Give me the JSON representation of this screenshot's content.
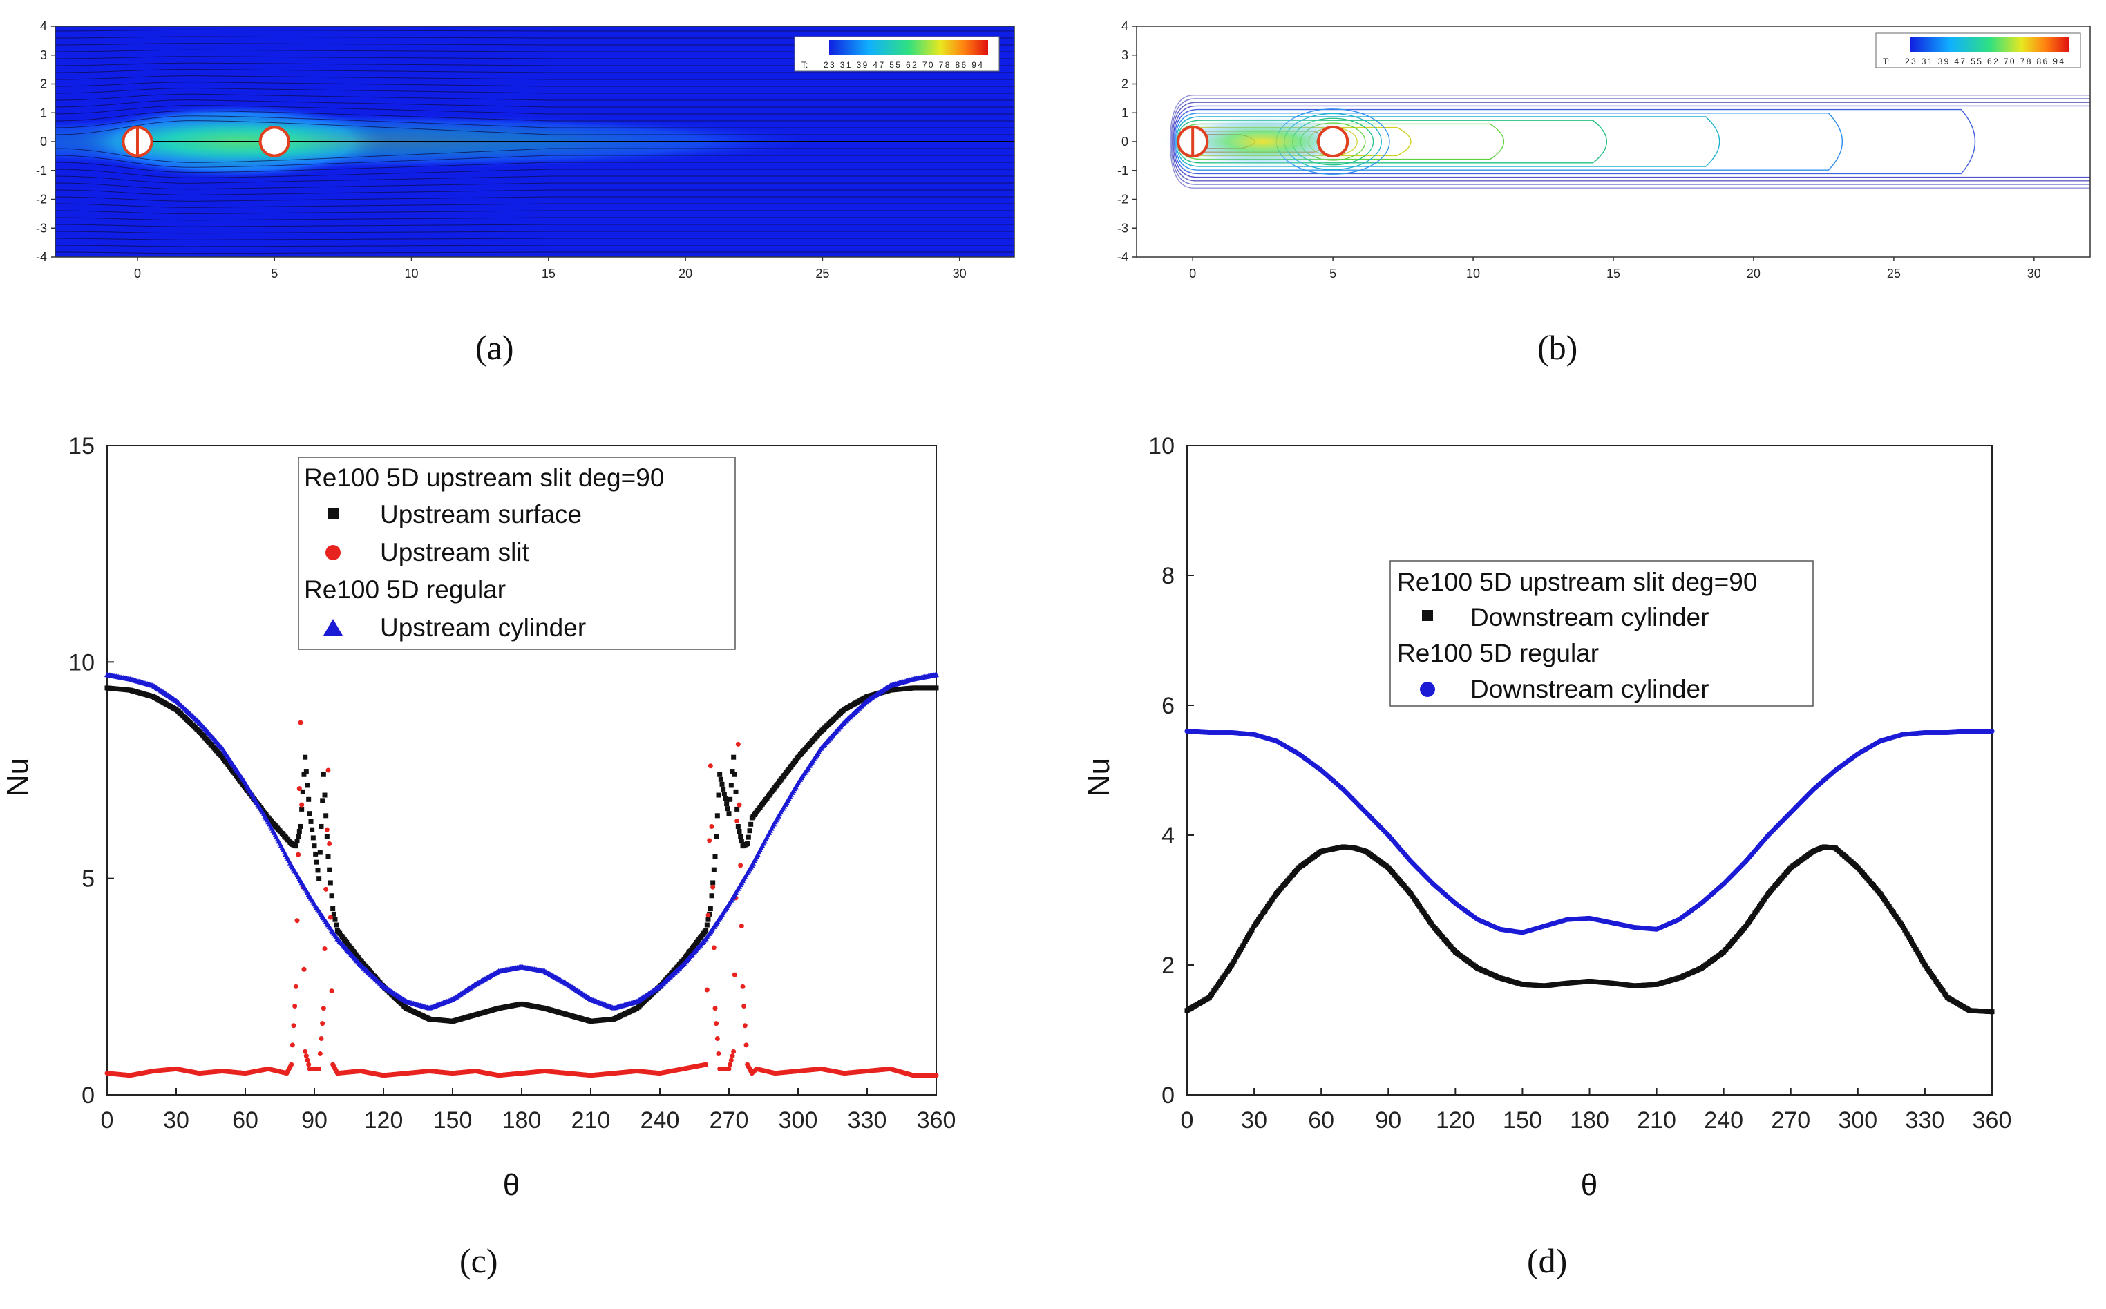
{
  "panel_labels": [
    "(a)",
    "(b)",
    "(c)",
    "(d)"
  ],
  "colors": {
    "field_blue": "#0f1ee6",
    "black_series": "#111111",
    "red_series": "#e8231f",
    "blue_series": "#1b1bd6"
  },
  "chart_data": [
    {
      "type": "heatmap",
      "title": "",
      "label": "(a)",
      "x_ticks": [
        "0",
        "5",
        "10",
        "15",
        "20",
        "25",
        "30"
      ],
      "y_ticks": [
        "4",
        "3",
        "2",
        "1",
        "0",
        "-1",
        "-2",
        "-3",
        "-4"
      ],
      "xlim": [
        -3,
        32
      ],
      "ylim": [
        -4,
        4
      ],
      "colorbar_prefix": "T:",
      "colorbar_labels": "23 31 39 47 55 62 70 78 86 94",
      "cylinders_x": [
        0,
        5
      ]
    },
    {
      "type": "heatmap",
      "title": "",
      "label": "(b)",
      "x_ticks": [
        "0",
        "5",
        "10",
        "15",
        "20",
        "25",
        "30"
      ],
      "y_ticks": [
        "4",
        "3",
        "2",
        "1",
        "0",
        "-1",
        "-2",
        "-3",
        "-4"
      ],
      "xlim": [
        -2,
        32
      ],
      "ylim": [
        -4,
        4
      ],
      "colorbar_prefix": "T:",
      "colorbar_labels": "23 31 39 47 55 62 70 78 86 94",
      "cylinders_x": [
        0,
        5
      ]
    },
    {
      "type": "scatter",
      "label": "(c)",
      "xlabel": "θ",
      "ylabel": "Nu",
      "xlim": [
        0,
        360
      ],
      "ylim": [
        0,
        15
      ],
      "x_ticks": [
        "0",
        "30",
        "60",
        "90",
        "120",
        "150",
        "180",
        "210",
        "240",
        "270",
        "300",
        "330",
        "360"
      ],
      "y_ticks": [
        "0",
        "5",
        "10",
        "15"
      ],
      "legend": {
        "group1_title": "Re100 5D upstream slit deg=90",
        "entries1": [
          "Upstream surface",
          "Upstream slit"
        ],
        "group2_title": "Re100 5D regular",
        "entries2": [
          "Upstream cylinder"
        ]
      },
      "series": [
        {
          "name": "Upstream surface",
          "marker": "square",
          "color": "#111111",
          "x": [
            0,
            10,
            20,
            30,
            40,
            50,
            60,
            70,
            80,
            82,
            84,
            86,
            88,
            92,
            94,
            96,
            98,
            100,
            110,
            120,
            130,
            140,
            150,
            160,
            170,
            180,
            190,
            200,
            210,
            220,
            230,
            240,
            250,
            260,
            262,
            264,
            266,
            270,
            272,
            274,
            276,
            278,
            280,
            290,
            300,
            310,
            320,
            330,
            340,
            350,
            360
          ],
          "y": [
            9.4,
            9.35,
            9.2,
            8.9,
            8.4,
            7.8,
            7.1,
            6.4,
            5.8,
            5.75,
            6.2,
            7.8,
            6.5,
            5.0,
            7.4,
            5.5,
            4.3,
            3.8,
            3.1,
            2.5,
            2.0,
            1.75,
            1.7,
            1.85,
            2.0,
            2.1,
            2.0,
            1.85,
            1.7,
            1.75,
            2.0,
            2.5,
            3.1,
            3.8,
            4.3,
            5.5,
            7.4,
            6.5,
            7.8,
            6.2,
            5.75,
            5.8,
            6.4,
            7.1,
            7.8,
            8.4,
            8.9,
            9.2,
            9.35,
            9.4,
            9.4
          ]
        },
        {
          "name": "Upstream slit",
          "marker": "circle",
          "color": "#e8231f",
          "x": [
            0,
            10,
            20,
            30,
            40,
            50,
            60,
            70,
            78,
            80,
            82,
            84,
            86,
            88,
            92,
            94,
            96,
            98,
            100,
            110,
            120,
            130,
            140,
            150,
            160,
            170,
            180,
            190,
            200,
            210,
            220,
            230,
            240,
            250,
            260,
            262,
            264,
            266,
            270,
            272,
            274,
            276,
            278,
            280,
            282,
            290,
            300,
            310,
            320,
            330,
            340,
            350,
            360
          ],
          "y": [
            0.5,
            0.45,
            0.55,
            0.6,
            0.5,
            0.55,
            0.5,
            0.6,
            0.5,
            0.7,
            2.5,
            8.6,
            1.0,
            0.6,
            0.6,
            2.0,
            7.5,
            0.7,
            0.5,
            0.55,
            0.45,
            0.5,
            0.55,
            0.5,
            0.55,
            0.45,
            0.5,
            0.55,
            0.5,
            0.45,
            0.5,
            0.55,
            0.5,
            0.6,
            0.7,
            7.6,
            2.0,
            0.6,
            0.6,
            1.0,
            8.1,
            2.5,
            0.7,
            0.5,
            0.6,
            0.5,
            0.55,
            0.6,
            0.5,
            0.55,
            0.6,
            0.45,
            0.45
          ]
        },
        {
          "name": "Upstream cylinder",
          "marker": "triangle",
          "color": "#1b1bd6",
          "x": [
            0,
            10,
            20,
            30,
            40,
            50,
            60,
            70,
            80,
            90,
            100,
            110,
            120,
            130,
            140,
            150,
            160,
            170,
            180,
            190,
            200,
            210,
            220,
            230,
            240,
            250,
            260,
            270,
            280,
            290,
            300,
            310,
            320,
            330,
            340,
            350,
            360
          ],
          "y": [
            9.7,
            9.6,
            9.45,
            9.1,
            8.6,
            8.0,
            7.2,
            6.3,
            5.3,
            4.4,
            3.6,
            3.0,
            2.5,
            2.15,
            2.0,
            2.2,
            2.55,
            2.85,
            2.95,
            2.85,
            2.55,
            2.2,
            2.0,
            2.15,
            2.5,
            3.0,
            3.6,
            4.4,
            5.3,
            6.3,
            7.2,
            8.0,
            8.6,
            9.1,
            9.45,
            9.6,
            9.7
          ]
        }
      ]
    },
    {
      "type": "scatter",
      "label": "(d)",
      "xlabel": "θ",
      "ylabel": "Nu",
      "xlim": [
        0,
        360
      ],
      "ylim": [
        0,
        10
      ],
      "x_ticks": [
        "0",
        "30",
        "60",
        "90",
        "120",
        "150",
        "180",
        "210",
        "240",
        "270",
        "300",
        "330",
        "360"
      ],
      "y_ticks": [
        "0",
        "2",
        "4",
        "6",
        "8",
        "10"
      ],
      "legend": {
        "group1_title": "Re100 5D upstream slit deg=90",
        "entries1": [
          "Downstream cylinder"
        ],
        "group2_title": "Re100 5D regular",
        "entries2": [
          "Downstream cylinder"
        ]
      },
      "series": [
        {
          "name": "Downstream cylinder (slit)",
          "marker": "square",
          "color": "#111111",
          "x": [
            0,
            10,
            20,
            30,
            40,
            50,
            60,
            70,
            75,
            80,
            90,
            100,
            110,
            120,
            130,
            140,
            150,
            160,
            170,
            180,
            190,
            200,
            210,
            220,
            230,
            240,
            250,
            260,
            270,
            280,
            285,
            290,
            300,
            310,
            320,
            330,
            340,
            350,
            360
          ],
          "y": [
            1.3,
            1.5,
            2.0,
            2.6,
            3.1,
            3.5,
            3.75,
            3.82,
            3.8,
            3.75,
            3.5,
            3.1,
            2.6,
            2.2,
            1.95,
            1.8,
            1.7,
            1.68,
            1.72,
            1.75,
            1.72,
            1.68,
            1.7,
            1.8,
            1.95,
            2.2,
            2.6,
            3.1,
            3.5,
            3.75,
            3.82,
            3.8,
            3.5,
            3.1,
            2.6,
            2.0,
            1.5,
            1.3,
            1.28
          ]
        },
        {
          "name": "Downstream cylinder (regular)",
          "marker": "circle",
          "color": "#1b1bd6",
          "x": [
            0,
            10,
            20,
            30,
            40,
            50,
            60,
            70,
            80,
            90,
            100,
            110,
            120,
            130,
            140,
            150,
            160,
            170,
            180,
            190,
            200,
            210,
            220,
            230,
            240,
            250,
            260,
            270,
            280,
            290,
            300,
            310,
            320,
            330,
            340,
            350,
            360
          ],
          "y": [
            5.6,
            5.58,
            5.58,
            5.55,
            5.45,
            5.25,
            5.0,
            4.7,
            4.35,
            4.0,
            3.6,
            3.25,
            2.95,
            2.7,
            2.55,
            2.5,
            2.6,
            2.7,
            2.72,
            2.65,
            2.58,
            2.55,
            2.7,
            2.95,
            3.25,
            3.6,
            4.0,
            4.35,
            4.7,
            5.0,
            5.25,
            5.45,
            5.55,
            5.58,
            5.58,
            5.6,
            5.6
          ]
        }
      ]
    }
  ]
}
